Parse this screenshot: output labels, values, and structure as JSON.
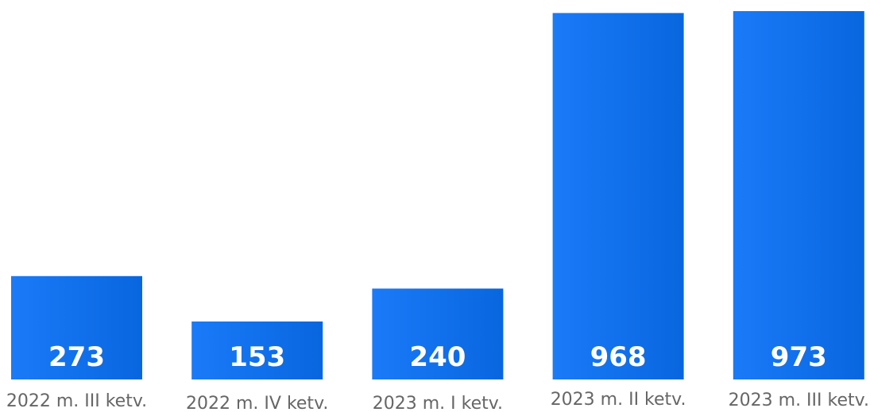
{
  "chart_data": {
    "type": "bar",
    "categories": [
      "2022 m. III ketv.",
      "2022 m. IV ketv.",
      "2023 m. I ketv.",
      "2023 m. II ketv.",
      "2023 m. III ketv."
    ],
    "values": [
      273,
      153,
      240,
      968,
      973
    ],
    "ylim": [
      0,
      1000
    ],
    "grid": false,
    "legend": "none",
    "colors": {
      "bar_start": "#1a7af8",
      "bar_end": "#0866df",
      "label": "#666666",
      "value_label": "#ffffff"
    }
  }
}
